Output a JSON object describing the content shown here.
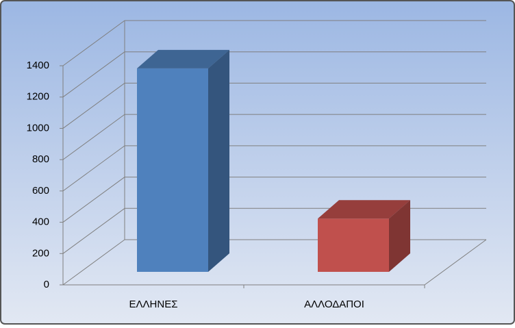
{
  "chart_data": {
    "type": "bar3d",
    "categories": [
      "ΕΛΛΗΝΕΣ",
      "ΑΛΛΟΔΑΠΟΙ"
    ],
    "series": [
      {
        "values": [
          1300,
          340
        ],
        "colors": [
          "#4f81bd",
          "#c0504d"
        ]
      }
    ],
    "ylim": [
      0,
      1400
    ],
    "yticks": [
      0,
      200,
      400,
      600,
      800,
      1000,
      1200,
      1400
    ],
    "grid": true
  }
}
